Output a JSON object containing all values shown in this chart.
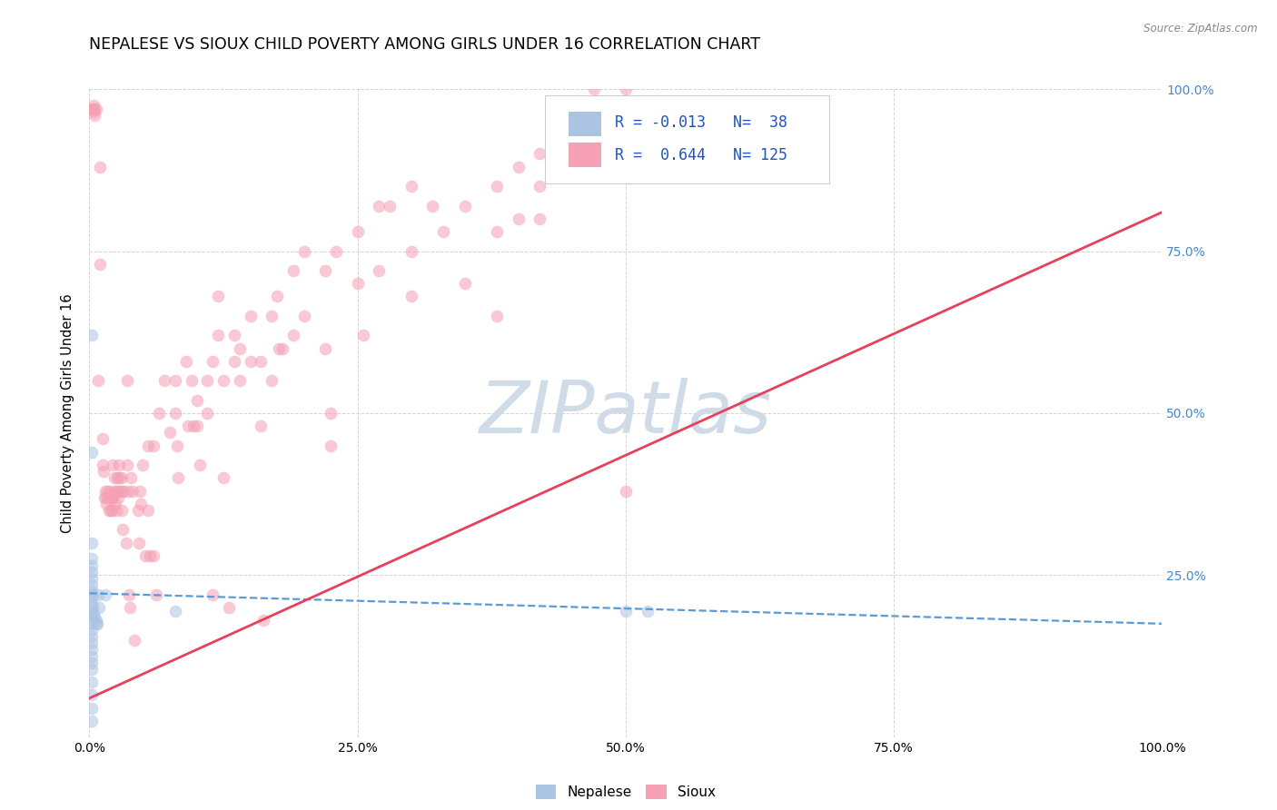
{
  "title": "NEPALESE VS SIOUX CHILD POVERTY AMONG GIRLS UNDER 16 CORRELATION CHART",
  "source": "Source: ZipAtlas.com",
  "ylabel": "Child Poverty Among Girls Under 16",
  "watermark": "ZIPatlas",
  "legend_label_blue": "Nepalese",
  "legend_label_pink": "Sioux",
  "xlim": [
    0,
    1.0
  ],
  "ylim": [
    0,
    1.0
  ],
  "blue_points": [
    [
      0.002,
      0.62
    ],
    [
      0.002,
      0.44
    ],
    [
      0.002,
      0.3
    ],
    [
      0.002,
      0.275
    ],
    [
      0.002,
      0.265
    ],
    [
      0.002,
      0.255
    ],
    [
      0.002,
      0.245
    ],
    [
      0.002,
      0.235
    ],
    [
      0.002,
      0.225
    ],
    [
      0.002,
      0.215
    ],
    [
      0.002,
      0.205
    ],
    [
      0.002,
      0.195
    ],
    [
      0.002,
      0.185
    ],
    [
      0.002,
      0.175
    ],
    [
      0.002,
      0.165
    ],
    [
      0.002,
      0.155
    ],
    [
      0.002,
      0.145
    ],
    [
      0.002,
      0.135
    ],
    [
      0.002,
      0.125
    ],
    [
      0.002,
      0.115
    ],
    [
      0.002,
      0.105
    ],
    [
      0.002,
      0.085
    ],
    [
      0.002,
      0.065
    ],
    [
      0.002,
      0.045
    ],
    [
      0.002,
      0.025
    ],
    [
      0.003,
      0.22
    ],
    [
      0.003,
      0.2
    ],
    [
      0.004,
      0.19
    ],
    [
      0.005,
      0.185
    ],
    [
      0.006,
      0.18
    ],
    [
      0.006,
      0.175
    ],
    [
      0.007,
      0.175
    ],
    [
      0.008,
      0.22
    ],
    [
      0.009,
      0.2
    ],
    [
      0.015,
      0.22
    ],
    [
      0.08,
      0.195
    ],
    [
      0.5,
      0.195
    ],
    [
      0.52,
      0.195
    ]
  ],
  "pink_points": [
    [
      0.002,
      0.97
    ],
    [
      0.003,
      0.97
    ],
    [
      0.004,
      0.975
    ],
    [
      0.004,
      0.965
    ],
    [
      0.005,
      0.97
    ],
    [
      0.005,
      0.96
    ],
    [
      0.006,
      0.97
    ],
    [
      0.008,
      0.55
    ],
    [
      0.01,
      0.88
    ],
    [
      0.01,
      0.73
    ],
    [
      0.012,
      0.46
    ],
    [
      0.012,
      0.42
    ],
    [
      0.013,
      0.41
    ],
    [
      0.014,
      0.37
    ],
    [
      0.015,
      0.38
    ],
    [
      0.016,
      0.37
    ],
    [
      0.016,
      0.36
    ],
    [
      0.017,
      0.38
    ],
    [
      0.018,
      0.37
    ],
    [
      0.018,
      0.35
    ],
    [
      0.019,
      0.38
    ],
    [
      0.019,
      0.37
    ],
    [
      0.02,
      0.35
    ],
    [
      0.02,
      0.37
    ],
    [
      0.021,
      0.37
    ],
    [
      0.021,
      0.35
    ],
    [
      0.022,
      0.42
    ],
    [
      0.022,
      0.37
    ],
    [
      0.023,
      0.4
    ],
    [
      0.023,
      0.38
    ],
    [
      0.024,
      0.36
    ],
    [
      0.025,
      0.35
    ],
    [
      0.026,
      0.4
    ],
    [
      0.026,
      0.38
    ],
    [
      0.027,
      0.37
    ],
    [
      0.028,
      0.42
    ],
    [
      0.028,
      0.4
    ],
    [
      0.028,
      0.38
    ],
    [
      0.03,
      0.4
    ],
    [
      0.03,
      0.38
    ],
    [
      0.03,
      0.35
    ],
    [
      0.031,
      0.32
    ],
    [
      0.032,
      0.38
    ],
    [
      0.034,
      0.3
    ],
    [
      0.035,
      0.55
    ],
    [
      0.035,
      0.42
    ],
    [
      0.036,
      0.38
    ],
    [
      0.037,
      0.22
    ],
    [
      0.038,
      0.2
    ],
    [
      0.039,
      0.4
    ],
    [
      0.04,
      0.38
    ],
    [
      0.042,
      0.15
    ],
    [
      0.045,
      0.35
    ],
    [
      0.046,
      0.3
    ],
    [
      0.047,
      0.38
    ],
    [
      0.048,
      0.36
    ],
    [
      0.05,
      0.42
    ],
    [
      0.052,
      0.28
    ],
    [
      0.055,
      0.45
    ],
    [
      0.055,
      0.35
    ],
    [
      0.056,
      0.28
    ],
    [
      0.06,
      0.45
    ],
    [
      0.06,
      0.28
    ],
    [
      0.062,
      0.22
    ],
    [
      0.065,
      0.5
    ],
    [
      0.07,
      0.55
    ],
    [
      0.075,
      0.47
    ],
    [
      0.08,
      0.55
    ],
    [
      0.08,
      0.5
    ],
    [
      0.082,
      0.45
    ],
    [
      0.083,
      0.4
    ],
    [
      0.09,
      0.58
    ],
    [
      0.092,
      0.48
    ],
    [
      0.095,
      0.55
    ],
    [
      0.097,
      0.48
    ],
    [
      0.1,
      0.52
    ],
    [
      0.1,
      0.48
    ],
    [
      0.103,
      0.42
    ],
    [
      0.11,
      0.55
    ],
    [
      0.11,
      0.5
    ],
    [
      0.115,
      0.58
    ],
    [
      0.115,
      0.22
    ],
    [
      0.12,
      0.68
    ],
    [
      0.12,
      0.62
    ],
    [
      0.125,
      0.55
    ],
    [
      0.125,
      0.4
    ],
    [
      0.13,
      0.2
    ],
    [
      0.135,
      0.62
    ],
    [
      0.135,
      0.58
    ],
    [
      0.14,
      0.6
    ],
    [
      0.14,
      0.55
    ],
    [
      0.15,
      0.65
    ],
    [
      0.15,
      0.58
    ],
    [
      0.16,
      0.58
    ],
    [
      0.16,
      0.48
    ],
    [
      0.162,
      0.18
    ],
    [
      0.17,
      0.65
    ],
    [
      0.17,
      0.55
    ],
    [
      0.175,
      0.68
    ],
    [
      0.177,
      0.6
    ],
    [
      0.18,
      0.6
    ],
    [
      0.19,
      0.72
    ],
    [
      0.19,
      0.62
    ],
    [
      0.2,
      0.75
    ],
    [
      0.2,
      0.65
    ],
    [
      0.22,
      0.72
    ],
    [
      0.22,
      0.6
    ],
    [
      0.225,
      0.5
    ],
    [
      0.225,
      0.45
    ],
    [
      0.23,
      0.75
    ],
    [
      0.25,
      0.78
    ],
    [
      0.25,
      0.7
    ],
    [
      0.255,
      0.62
    ],
    [
      0.27,
      0.82
    ],
    [
      0.27,
      0.72
    ],
    [
      0.28,
      0.82
    ],
    [
      0.3,
      0.85
    ],
    [
      0.3,
      0.75
    ],
    [
      0.3,
      0.68
    ],
    [
      0.32,
      0.82
    ],
    [
      0.33,
      0.78
    ],
    [
      0.35,
      0.82
    ],
    [
      0.35,
      0.7
    ],
    [
      0.38,
      0.85
    ],
    [
      0.38,
      0.78
    ],
    [
      0.38,
      0.65
    ],
    [
      0.4,
      0.88
    ],
    [
      0.4,
      0.8
    ],
    [
      0.42,
      0.9
    ],
    [
      0.42,
      0.85
    ],
    [
      0.42,
      0.8
    ],
    [
      0.45,
      0.92
    ],
    [
      0.45,
      0.88
    ],
    [
      0.47,
      1.0
    ],
    [
      0.47,
      0.97
    ],
    [
      0.47,
      0.95
    ],
    [
      0.48,
      0.96
    ],
    [
      0.5,
      1.0
    ],
    [
      0.5,
      0.97
    ],
    [
      0.5,
      0.95
    ],
    [
      0.5,
      0.9
    ],
    [
      0.5,
      0.38
    ]
  ],
  "blue_line_x": [
    0.0,
    1.0
  ],
  "blue_line_y": [
    0.222,
    0.175
  ],
  "pink_line_x": [
    0.0,
    1.0
  ],
  "pink_line_y": [
    0.06,
    0.81
  ],
  "blue_color": "#aac4e2",
  "pink_color": "#f5a0b4",
  "blue_line_color": "#5b9bd5",
  "pink_line_color": "#e8405a",
  "grid_color": "#d0d0d0",
  "background_color": "#ffffff",
  "watermark_color": "#cfdce8",
  "title_fontsize": 12.5,
  "axis_label_fontsize": 10.5,
  "tick_fontsize": 10,
  "dot_size": 90,
  "dot_alpha": 0.55
}
